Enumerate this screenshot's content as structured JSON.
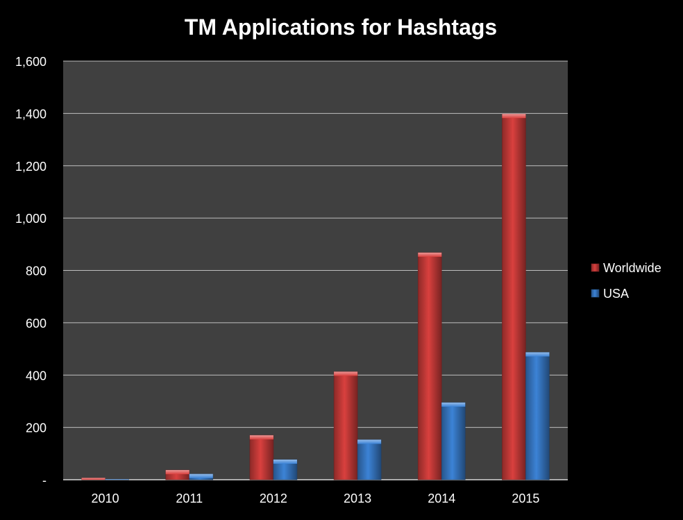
{
  "chart_data": {
    "type": "bar",
    "title": "TM Applications for Hashtags",
    "xlabel": "",
    "ylabel": "",
    "categories": [
      "2010",
      "2011",
      "2012",
      "2013",
      "2014",
      "2015"
    ],
    "series": [
      {
        "name": "Worldwide",
        "values": [
          7,
          37,
          170,
          413,
          868,
          1398
        ],
        "color": "#d9403e"
      },
      {
        "name": "USA",
        "values": [
          2,
          22,
          77,
          153,
          295,
          487
        ],
        "color": "#3c83d6"
      }
    ],
    "ylim": [
      0,
      1600
    ],
    "yticks": [
      0,
      200,
      400,
      600,
      800,
      1000,
      1200,
      1400,
      1600
    ],
    "ytick_labels": [
      "-",
      "200",
      "400",
      "600",
      "800",
      "1,000",
      "1,200",
      "1,400",
      "1,600"
    ],
    "grid": true,
    "legend_position": "right",
    "plot_background": "#404040",
    "page_background": "#000000"
  }
}
